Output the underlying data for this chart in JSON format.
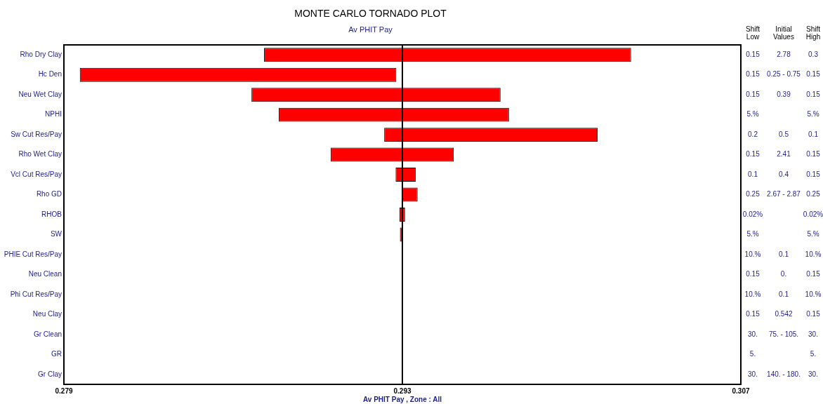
{
  "chart_data": {
    "type": "bar",
    "orientation": "horizontal",
    "title": "MONTE CARLO TORNADO PLOT",
    "subtitle": "Av PHIT Pay",
    "xlabel": "Av PHIT Pay , Zone : All",
    "categories": [
      "Rho Dry Clay",
      "Hc Den",
      "Neu Wet Clay",
      "NPHI",
      "Sw Cut Res/Pay",
      "Rho Wet Clay",
      "Vcl Cut Res/Pay",
      "Rho GD",
      "RHOB",
      "SW",
      "PHIE Cut Res/Pay",
      "Neu Clean",
      "Phi Cut Res/Pay",
      "Neu Clay",
      "Gr Clean",
      "GR",
      "Gr Clay"
    ],
    "base": [
      0.28728,
      0.27966,
      0.28676,
      0.28789,
      0.29225,
      0.29004,
      0.29272,
      0.293,
      0.29288,
      0.2929,
      null,
      null,
      null,
      null,
      null,
      null,
      null
    ],
    "values": [
      0.01518,
      0.01309,
      0.0103,
      0.00952,
      0.00883,
      0.00508,
      0.00083,
      0.00063,
      0.00023,
      0.0001,
      null,
      null,
      null,
      null,
      null,
      null,
      null
    ],
    "color": "#ff0000",
    "xlim": [
      0.279,
      0.307
    ],
    "xticks": [
      0.279,
      0.293,
      0.307
    ],
    "ref_lines": [
      {
        "axis": "x",
        "value": 0.293,
        "color": "#000000"
      }
    ],
    "legend": false,
    "grid": false,
    "annotations": [
      "Shift Low\tInitial Values\tShift High",
      "0.15\t2.78\t0.3",
      "0.15\t0.25 - 0.75\t0.15",
      "0.15\t0.39\t0.15",
      "5.%\t\t5.%",
      "0.2\t0.5\t0.1",
      "0.15\t2.41\t0.15",
      "0.1\t0.4\t0.15",
      "0.25\t2.67 - 2.87\t0.25",
      "0.02%\t\t0.02%",
      "5.%\t\t5.%",
      "10.%\t0.1\t10.%",
      "0.15\t0.\t0.15",
      "10.%\t0.1\t10.%",
      "0.15\t0.542\t0.15",
      "30.\t75. - 105.\t30.",
      "5.\t\t5.",
      "30.\t140. - 180.\t30."
    ]
  }
}
